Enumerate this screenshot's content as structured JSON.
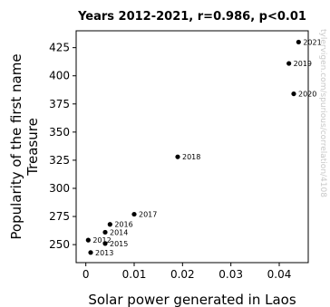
{
  "chart_data": {
    "type": "scatter",
    "title": "Years 2012-2021, r=0.986, p<0.01",
    "xlabel": "Solar power generated in Laos",
    "ylabel_lines": [
      "Popularity of the first name",
      "Treasure"
    ],
    "xlim": [
      -0.002,
      0.046
    ],
    "ylim": [
      234,
      440
    ],
    "xticks": [
      0,
      0.01,
      0.02,
      0.03,
      0.04
    ],
    "xtick_labels": [
      "0",
      "0.01",
      "0.02",
      "0.03",
      "0.04"
    ],
    "yticks": [
      250,
      275,
      300,
      325,
      350,
      375,
      400,
      425
    ],
    "ytick_labels": [
      "250",
      "275",
      "300",
      "325",
      "350",
      "375",
      "400",
      "425"
    ],
    "grid": false,
    "points": [
      {
        "label": "2012",
        "x": 0.0005,
        "y": 254
      },
      {
        "label": "2013",
        "x": 0.001,
        "y": 243
      },
      {
        "label": "2014",
        "x": 0.004,
        "y": 261
      },
      {
        "label": "2015",
        "x": 0.004,
        "y": 251
      },
      {
        "label": "2016",
        "x": 0.005,
        "y": 268
      },
      {
        "label": "2017",
        "x": 0.01,
        "y": 277
      },
      {
        "label": "2018",
        "x": 0.019,
        "y": 328
      },
      {
        "label": "2019",
        "x": 0.042,
        "y": 411
      },
      {
        "label": "2020",
        "x": 0.043,
        "y": 384
      },
      {
        "label": "2021",
        "x": 0.044,
        "y": 430
      }
    ],
    "watermark": "tylervigen.com/spurious/correlation/4108"
  }
}
